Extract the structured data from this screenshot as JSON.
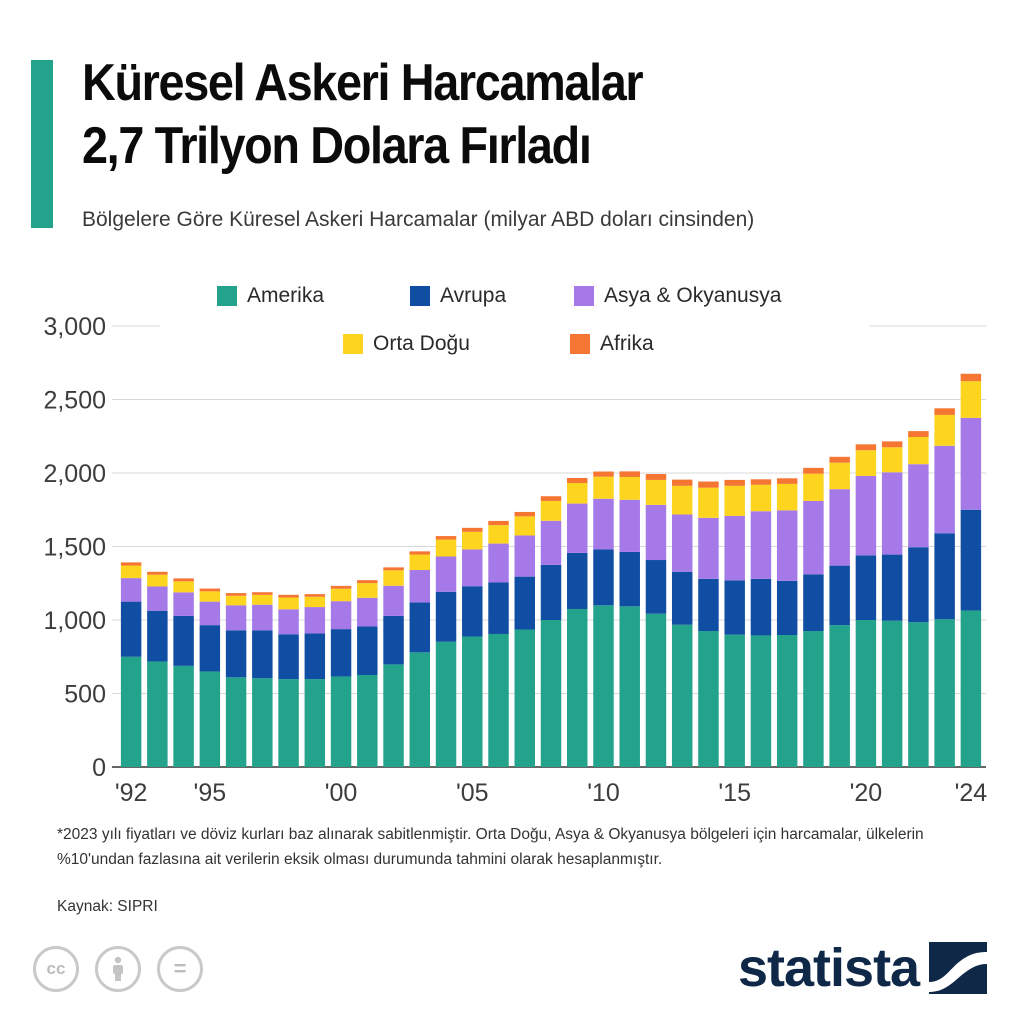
{
  "header": {
    "title_line1": "Küresel Askeri Harcamalar",
    "title_line2": "2,7 Trilyon Dolara Fırladı",
    "subtitle": "Bölgelere Göre Küresel Askeri Harcamalar (milyar ABD doları cinsinden)",
    "accent_color": "#23a38b"
  },
  "legend": [
    {
      "label": "Amerika",
      "color": "#23a38b"
    },
    {
      "label": "Avrupa",
      "color": "#0f4ea3"
    },
    {
      "label": "Asya & Okyanusya",
      "color": "#a57ae8"
    },
    {
      "label": "Orta Doğu",
      "color": "#fdd51f"
    },
    {
      "label": "Afrika",
      "color": "#f57532"
    }
  ],
  "chart_data": {
    "type": "bar",
    "stacked": true,
    "x": [
      1992,
      1993,
      1994,
      1995,
      1996,
      1997,
      1998,
      1999,
      2000,
      2001,
      2002,
      2003,
      2004,
      2005,
      2006,
      2007,
      2008,
      2009,
      2010,
      2011,
      2012,
      2013,
      2014,
      2015,
      2016,
      2017,
      2018,
      2019,
      2020,
      2021,
      2022,
      2023,
      2024
    ],
    "x_tick_labels": [
      "'92",
      "'95",
      "'00",
      "'05",
      "'10",
      "'15",
      "'20",
      "'24"
    ],
    "x_tick_years": [
      1992,
      1995,
      2000,
      2005,
      2010,
      2015,
      2020,
      2024
    ],
    "y_ticks": [
      0,
      500,
      1000,
      1500,
      2000,
      2500,
      3000
    ],
    "y_tick_labels": [
      "0",
      "500",
      "1,000",
      "1,500",
      "2,000",
      "2,500",
      "3,000"
    ],
    "ylim": [
      0,
      3000
    ],
    "grid": true,
    "legend_position": "top",
    "series": [
      {
        "name": "Amerika",
        "color": "#23a38b",
        "values": [
          750,
          718,
          688,
          650,
          610,
          604,
          598,
          598,
          616,
          626,
          698,
          780,
          852,
          888,
          905,
          935,
          1000,
          1075,
          1100,
          1093,
          1043,
          968,
          925,
          900,
          895,
          898,
          925,
          965,
          1000,
          995,
          985,
          1005,
          1065
        ]
      },
      {
        "name": "Avrupa",
        "color": "#0f4ea3",
        "values": [
          375,
          345,
          340,
          315,
          320,
          325,
          305,
          310,
          322,
          330,
          330,
          340,
          340,
          342,
          350,
          360,
          375,
          382,
          380,
          370,
          365,
          360,
          355,
          370,
          385,
          368,
          385,
          405,
          440,
          450,
          510,
          585,
          685
        ]
      },
      {
        "name": "Asya & Okyanusya",
        "color": "#a57ae8",
        "values": [
          160,
          165,
          160,
          160,
          170,
          175,
          170,
          180,
          190,
          195,
          205,
          220,
          240,
          250,
          265,
          280,
          300,
          335,
          345,
          355,
          375,
          390,
          415,
          438,
          460,
          480,
          500,
          520,
          540,
          560,
          565,
          595,
          625
        ]
      },
      {
        "name": "Orta Doğu",
        "color": "#fdd51f",
        "values": [
          85,
          80,
          75,
          70,
          65,
          67,
          80,
          70,
          85,
          100,
          105,
          105,
          115,
          120,
          125,
          130,
          135,
          140,
          150,
          155,
          170,
          195,
          205,
          205,
          180,
          180,
          185,
          180,
          175,
          170,
          185,
          210,
          250
        ]
      },
      {
        "name": "Afrika",
        "color": "#f57532",
        "values": [
          22,
          20,
          20,
          19,
          18,
          18,
          18,
          18,
          19,
          20,
          20,
          22,
          24,
          27,
          29,
          30,
          32,
          34,
          35,
          38,
          40,
          42,
          42,
          40,
          37,
          38,
          40,
          40,
          40,
          40,
          40,
          45,
          50
        ]
      }
    ]
  },
  "footer": {
    "footnote": "*2023 yılı fiyatları ve döviz kurları baz alınarak sabitlenmiştir. Orta Doğu, Asya & Okyanusya bölgeleri için harcamalar, ülkelerin %10'undan fazlasına ait verilerin eksik olması durumunda tahmini olarak hesaplanmıştır.",
    "source": "Kaynak: SIPRI",
    "brand": "statista",
    "brand_color": "#0f2847",
    "license_icons": [
      "cc-icon",
      "attribution-icon",
      "no-derivatives-icon"
    ],
    "cc_text": "cc",
    "nd_text": "="
  }
}
